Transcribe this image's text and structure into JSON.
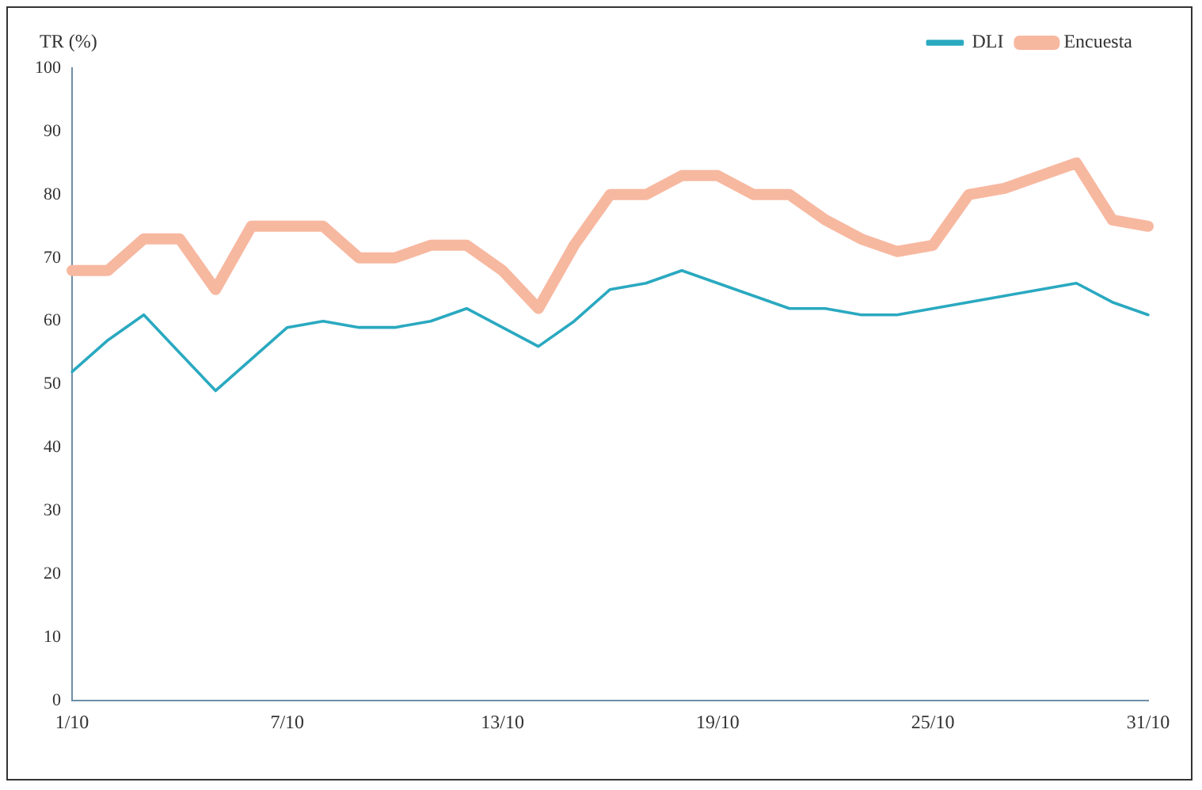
{
  "chart_data": {
    "type": "line",
    "ylabel": "TR (%)",
    "categories": [
      "1/10",
      null,
      null,
      null,
      null,
      null,
      "7/10",
      null,
      null,
      null,
      null,
      null,
      "13/10",
      null,
      null,
      null,
      null,
      null,
      "19/10",
      null,
      null,
      null,
      null,
      null,
      "25/10",
      null,
      null,
      null,
      null,
      null,
      "31/10"
    ],
    "series": [
      {
        "name": "DLI",
        "color": "#2aa9c0",
        "values": [
          52,
          57,
          61,
          55,
          49,
          54,
          59,
          60,
          59,
          59,
          60,
          62,
          59,
          56,
          60,
          65,
          66,
          68,
          66,
          64,
          62,
          62,
          61,
          61,
          62,
          63,
          64,
          65,
          66,
          63,
          61
        ]
      },
      {
        "name": "Encuesta",
        "color": "#f7b8a0",
        "values": [
          68,
          68,
          73,
          73,
          65,
          75,
          75,
          75,
          70,
          70,
          72,
          72,
          68,
          62,
          72,
          80,
          80,
          83,
          83,
          80,
          80,
          76,
          73,
          71,
          72,
          80,
          81,
          83,
          85,
          76,
          75
        ]
      }
    ],
    "ylim": [
      0,
      100
    ],
    "yticks": [
      0,
      10,
      20,
      30,
      40,
      50,
      60,
      70,
      80,
      90,
      100
    ],
    "grid": false,
    "legend": "top right",
    "marker": "none",
    "line_style": "solid"
  }
}
